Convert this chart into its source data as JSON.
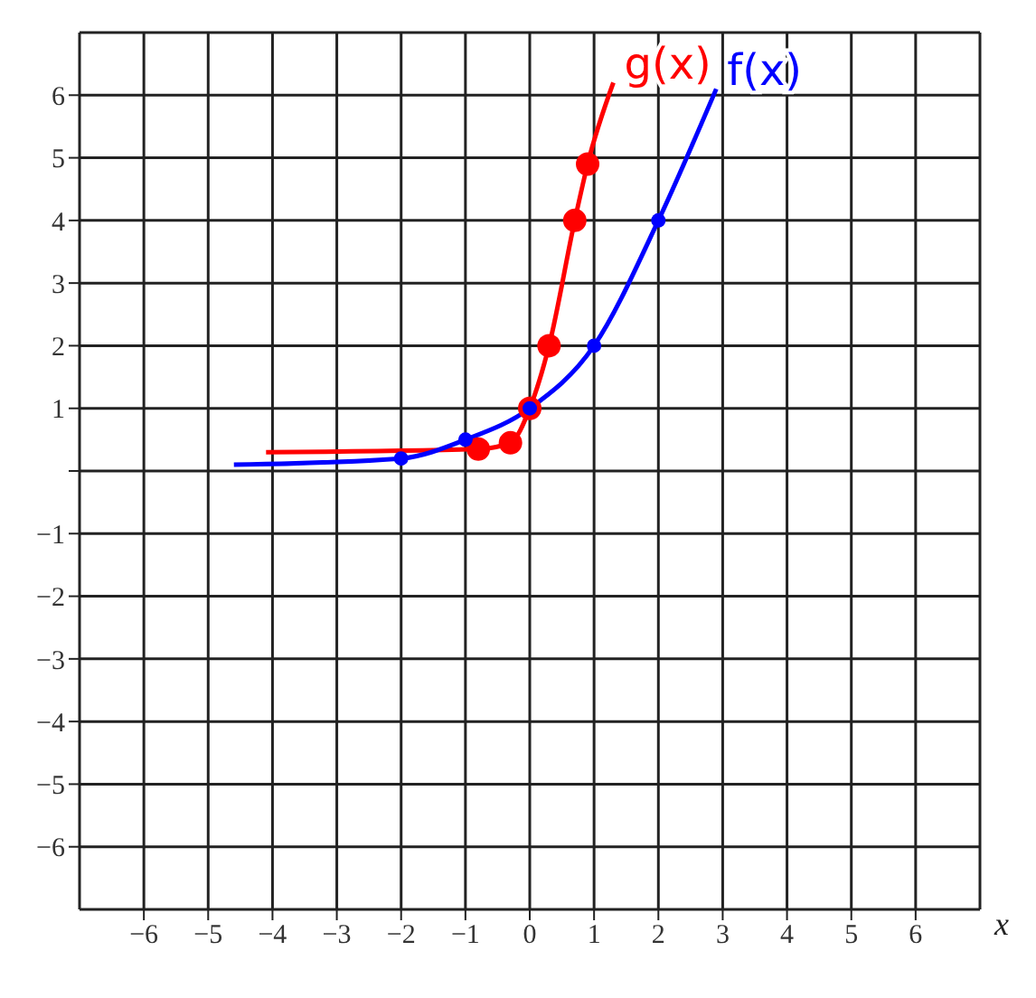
{
  "chart_data": {
    "type": "line",
    "xlabel": "x",
    "xlim": [
      -7,
      7
    ],
    "ylim": [
      -7,
      7
    ],
    "xticks": [
      -6,
      -5,
      -4,
      -3,
      -2,
      -1,
      0,
      1,
      2,
      3,
      4,
      5,
      6
    ],
    "yticks": [
      -6,
      -5,
      -4,
      -3,
      -2,
      -1,
      {
        "value": 0,
        "label": null
      },
      1,
      2,
      3,
      4,
      5,
      6
    ],
    "grid": true,
    "marker": "circle",
    "line_style": "solid",
    "legend": false,
    "series": [
      {
        "name": "g(x)",
        "color": "#ff0000",
        "x": [
          -4.1,
          -0.8,
          -0.3,
          0,
          0.3,
          0.7,
          0.9,
          1.3
        ],
        "values": [
          0.3,
          0.35,
          0.45,
          1,
          2,
          4,
          4.9,
          6.2
        ]
      },
      {
        "name": "f(x)",
        "color": "#0000ff",
        "x": [
          -4.6,
          -2,
          -1,
          0,
          1,
          2,
          2.9
        ],
        "values": [
          0.1,
          0.2,
          0.5,
          1,
          2,
          4,
          6.1
        ]
      }
    ]
  }
}
